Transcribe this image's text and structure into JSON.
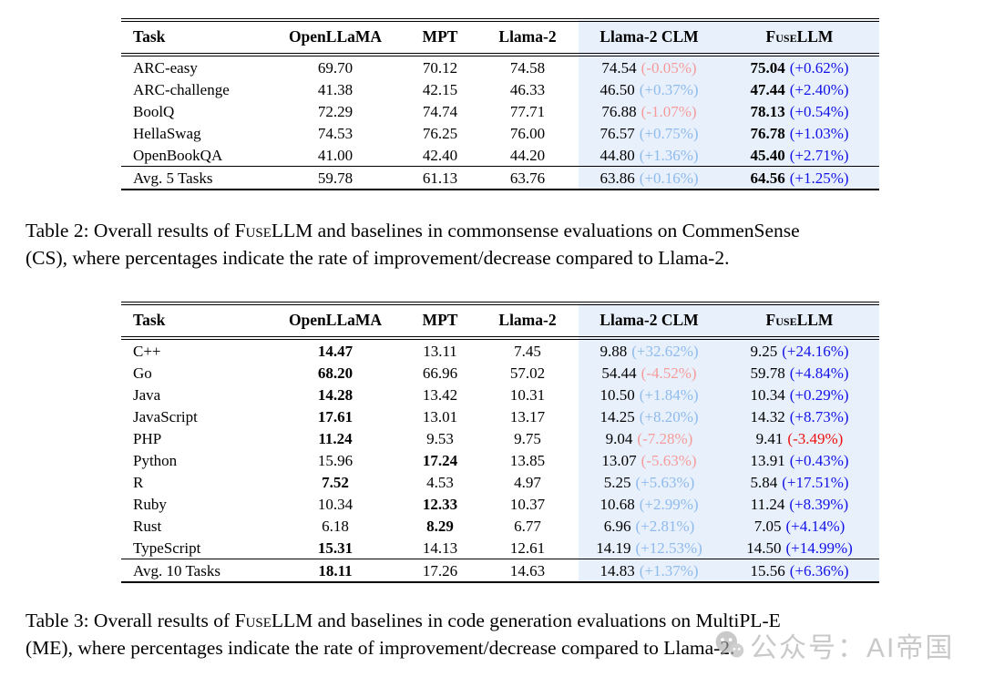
{
  "colors": {
    "highlight_bg": "#e8f0fb",
    "clm_pos": "#8fbbec",
    "clm_neg": "#f59b9b",
    "fuse_pos": "#1212e8",
    "fuse_neg": "#ee1111",
    "text": "#000000",
    "watermark": "#a9a9a9"
  },
  "table2": {
    "columns": [
      "Task",
      "OpenLLaMA",
      "MPT",
      "Llama-2",
      "Llama-2 CLM",
      "FuseLLM"
    ],
    "rows": [
      {
        "task": "ARC-easy",
        "openllama": "69.70",
        "mpt": "70.12",
        "llama2": "74.58",
        "clm_val": "74.54",
        "clm_pct": "(-0.05%)",
        "clm_neg": true,
        "fuse_val": "75.04",
        "fuse_pct": "(+0.62%)",
        "fuse_neg": false,
        "bold": "fuse"
      },
      {
        "task": "ARC-challenge",
        "openllama": "41.38",
        "mpt": "42.15",
        "llama2": "46.33",
        "clm_val": "46.50",
        "clm_pct": "(+0.37%)",
        "clm_neg": false,
        "fuse_val": "47.44",
        "fuse_pct": "(+2.40%)",
        "fuse_neg": false,
        "bold": "fuse"
      },
      {
        "task": "BoolQ",
        "openllama": "72.29",
        "mpt": "74.74",
        "llama2": "77.71",
        "clm_val": "76.88",
        "clm_pct": "(-1.07%)",
        "clm_neg": true,
        "fuse_val": "78.13",
        "fuse_pct": "(+0.54%)",
        "fuse_neg": false,
        "bold": "fuse"
      },
      {
        "task": "HellaSwag",
        "openllama": "74.53",
        "mpt": "76.25",
        "llama2": "76.00",
        "clm_val": "76.57",
        "clm_pct": "(+0.75%)",
        "clm_neg": false,
        "fuse_val": "76.78",
        "fuse_pct": "(+1.03%)",
        "fuse_neg": false,
        "bold": "fuse"
      },
      {
        "task": "OpenBookQA",
        "openllama": "41.00",
        "mpt": "42.40",
        "llama2": "44.20",
        "clm_val": "44.80",
        "clm_pct": "(+1.36%)",
        "clm_neg": false,
        "fuse_val": "45.40",
        "fuse_pct": "(+2.71%)",
        "fuse_neg": false,
        "bold": "fuse"
      },
      {
        "task": "Avg. 5 Tasks",
        "openllama": "59.78",
        "mpt": "61.13",
        "llama2": "63.76",
        "clm_val": "63.86",
        "clm_pct": "(+0.16%)",
        "clm_neg": false,
        "fuse_val": "64.56",
        "fuse_pct": "(+1.25%)",
        "fuse_neg": false,
        "bold": "fuse",
        "avg": true
      }
    ],
    "caption": {
      "prefix": "Table 2: Overall results of ",
      "brand": "FuseLLM",
      "suffix": " and baselines in commonsense evaluations on CommenSense",
      "line2": "(CS), where percentages indicate the rate of improvement/decrease compared to Llama-2."
    }
  },
  "table3": {
    "columns": [
      "Task",
      "OpenLLaMA",
      "MPT",
      "Llama-2",
      "Llama-2 CLM",
      "FuseLLM"
    ],
    "rows": [
      {
        "task": "C++",
        "openllama": "14.47",
        "mpt": "13.11",
        "llama2": "7.45",
        "clm_val": "9.88",
        "clm_pct": "(+32.62%)",
        "clm_neg": false,
        "fuse_val": "9.25",
        "fuse_pct": "(+24.16%)",
        "fuse_neg": false,
        "bold": "openllama"
      },
      {
        "task": "Go",
        "openllama": "68.20",
        "mpt": "66.96",
        "llama2": "57.02",
        "clm_val": "54.44",
        "clm_pct": "(-4.52%)",
        "clm_neg": true,
        "fuse_val": "59.78",
        "fuse_pct": "(+4.84%)",
        "fuse_neg": false,
        "bold": "openllama"
      },
      {
        "task": "Java",
        "openllama": "14.28",
        "mpt": "13.42",
        "llama2": "10.31",
        "clm_val": "10.50",
        "clm_pct": "(+1.84%)",
        "clm_neg": false,
        "fuse_val": "10.34",
        "fuse_pct": "(+0.29%)",
        "fuse_neg": false,
        "bold": "openllama"
      },
      {
        "task": "JavaScript",
        "openllama": "17.61",
        "mpt": "13.01",
        "llama2": "13.17",
        "clm_val": "14.25",
        "clm_pct": "(+8.20%)",
        "clm_neg": false,
        "fuse_val": "14.32",
        "fuse_pct": "(+8.73%)",
        "fuse_neg": false,
        "bold": "openllama"
      },
      {
        "task": "PHP",
        "openllama": "11.24",
        "mpt": "9.53",
        "llama2": "9.75",
        "clm_val": "9.04",
        "clm_pct": "(-7.28%)",
        "clm_neg": true,
        "fuse_val": "9.41",
        "fuse_pct": "(-3.49%)",
        "fuse_neg": true,
        "bold": "openllama"
      },
      {
        "task": "Python",
        "openllama": "15.96",
        "mpt": "17.24",
        "llama2": "13.85",
        "clm_val": "13.07",
        "clm_pct": "(-5.63%)",
        "clm_neg": true,
        "fuse_val": "13.91",
        "fuse_pct": "(+0.43%)",
        "fuse_neg": false,
        "bold": "mpt"
      },
      {
        "task": "R",
        "openllama": "7.52",
        "mpt": "4.53",
        "llama2": "4.97",
        "clm_val": "5.25",
        "clm_pct": "(+5.63%)",
        "clm_neg": false,
        "fuse_val": "5.84",
        "fuse_pct": "(+17.51%)",
        "fuse_neg": false,
        "bold": "openllama"
      },
      {
        "task": "Ruby",
        "openllama": "10.34",
        "mpt": "12.33",
        "llama2": "10.37",
        "clm_val": "10.68",
        "clm_pct": "(+2.99%)",
        "clm_neg": false,
        "fuse_val": "11.24",
        "fuse_pct": "(+8.39%)",
        "fuse_neg": false,
        "bold": "mpt"
      },
      {
        "task": "Rust",
        "openllama": "6.18",
        "mpt": "8.29",
        "llama2": "6.77",
        "clm_val": "6.96",
        "clm_pct": "(+2.81%)",
        "clm_neg": false,
        "fuse_val": "7.05",
        "fuse_pct": "(+4.14%)",
        "fuse_neg": false,
        "bold": "mpt"
      },
      {
        "task": "TypeScript",
        "openllama": "15.31",
        "mpt": "14.13",
        "llama2": "12.61",
        "clm_val": "14.19",
        "clm_pct": "(+12.53%)",
        "clm_neg": false,
        "fuse_val": "14.50",
        "fuse_pct": "(+14.99%)",
        "fuse_neg": false,
        "bold": "openllama"
      },
      {
        "task": "Avg. 10 Tasks",
        "openllama": "18.11",
        "mpt": "17.26",
        "llama2": "14.63",
        "clm_val": "14.83",
        "clm_pct": "(+1.37%)",
        "clm_neg": false,
        "fuse_val": "15.56",
        "fuse_pct": "(+6.36%)",
        "fuse_neg": false,
        "bold": "openllama",
        "avg": true
      }
    ],
    "caption": {
      "prefix": "Table 3: Overall results of ",
      "brand": "FuseLLM",
      "suffix": " and baselines in code generation evaluations on MultiPL-E",
      "line2": "(ME), where percentages indicate the rate of improvement/decrease compared to Llama-2."
    }
  },
  "watermark": {
    "text": "公众号：AI帝国",
    "icon": "wechat-icon"
  }
}
